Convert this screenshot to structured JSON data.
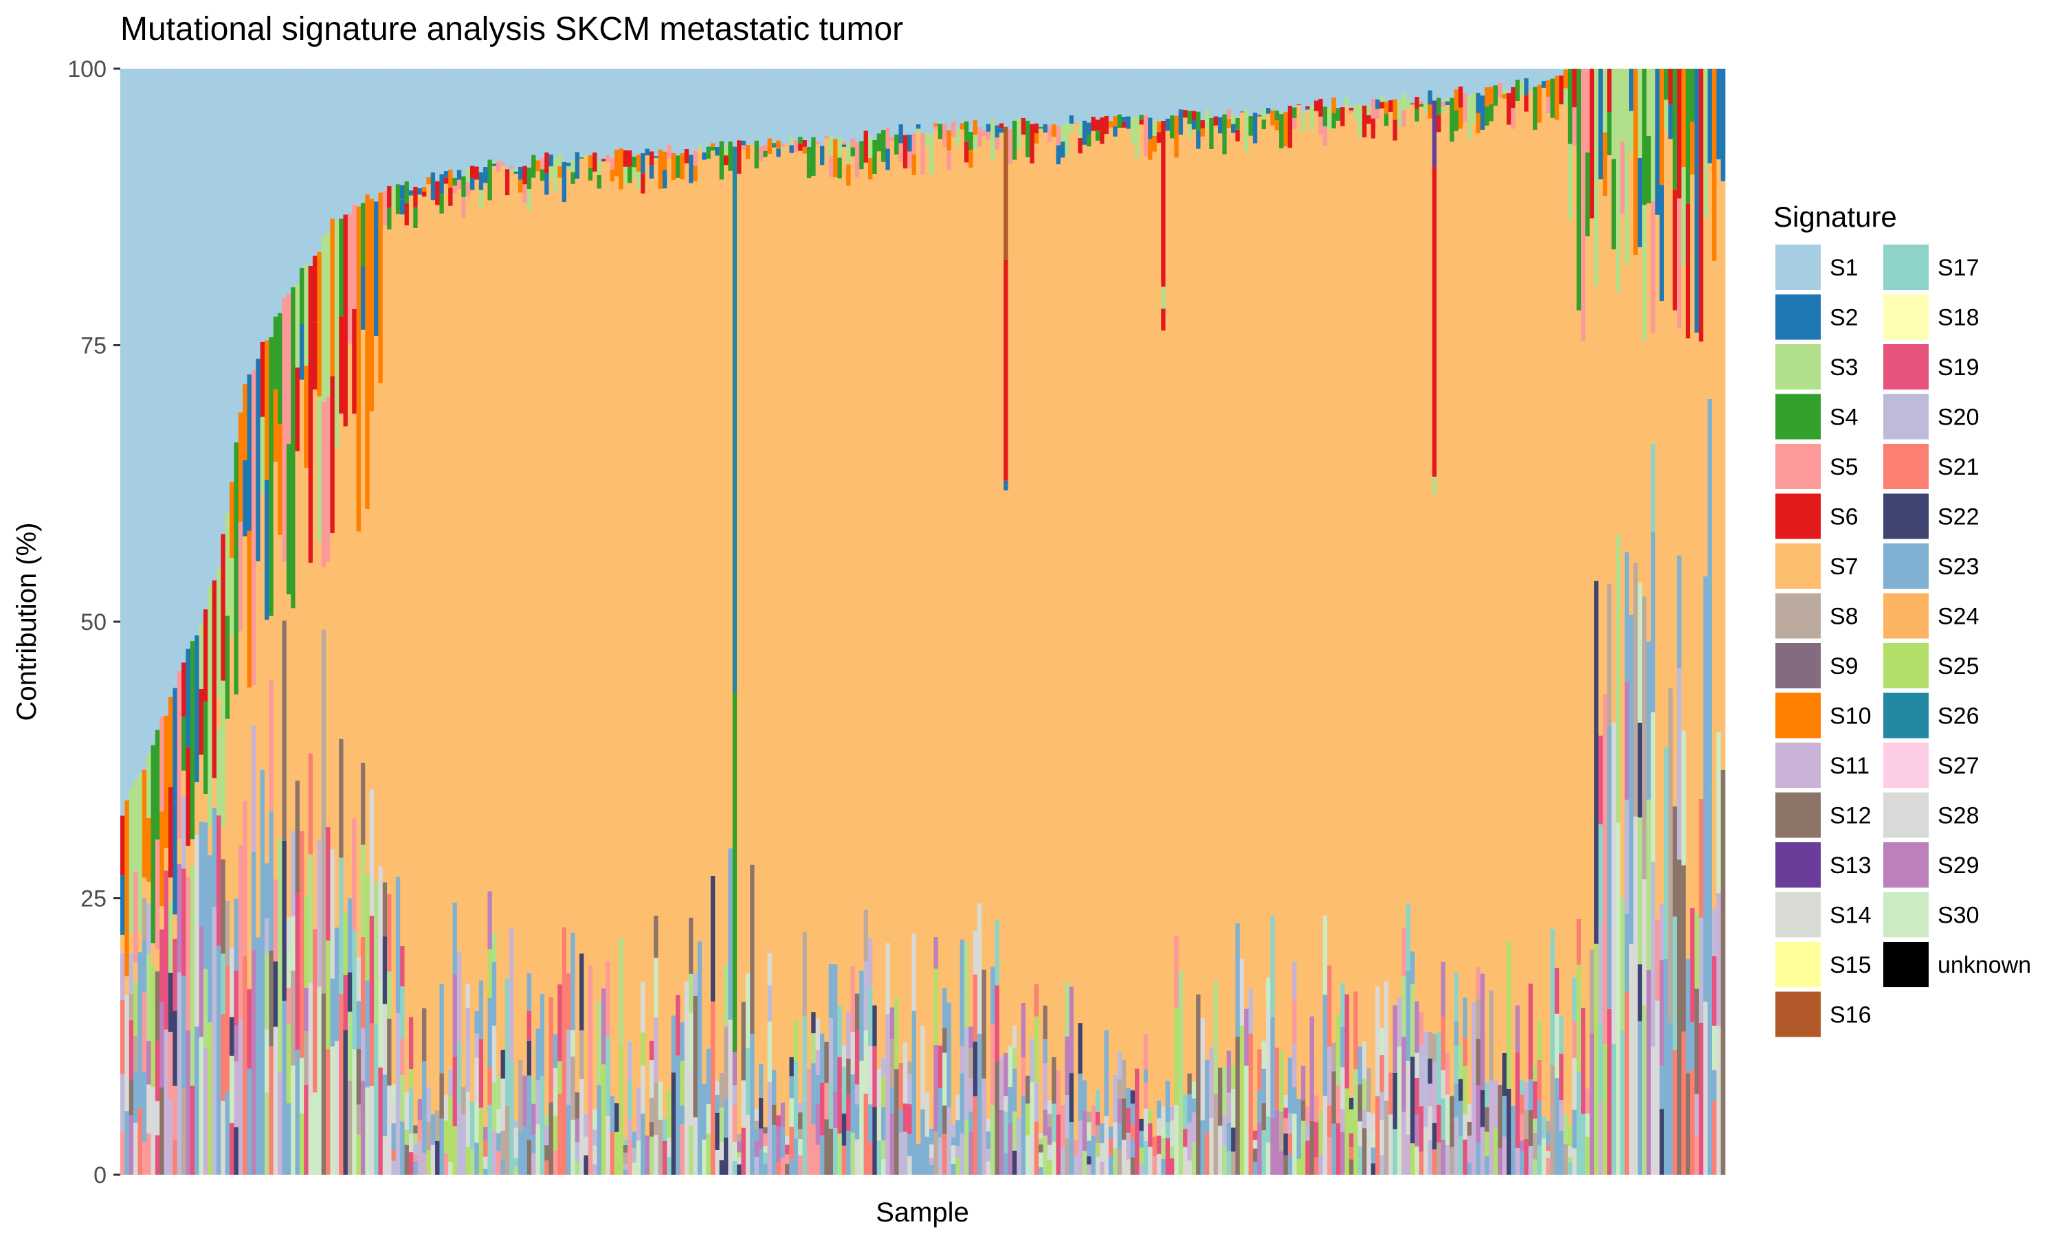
{
  "chart_data": {
    "type": "bar",
    "stacked": true,
    "title": "Mutational signature analysis SKCM metastatic tumor",
    "xlabel": "Sample",
    "ylabel": "Contribution (%)",
    "ylim": [
      0,
      100
    ],
    "yticks": [
      0,
      25,
      50,
      75,
      100
    ],
    "legend_title": "Signature",
    "legend_position": "right",
    "grid": false,
    "panel_background": "#ebebeb",
    "n_samples": 367,
    "signatures": [
      {
        "name": "S1",
        "color": "#a6cee3"
      },
      {
        "name": "S2",
        "color": "#1f78b4"
      },
      {
        "name": "S3",
        "color": "#b2df8a"
      },
      {
        "name": "S4",
        "color": "#33a02c"
      },
      {
        "name": "S5",
        "color": "#fb9a99"
      },
      {
        "name": "S6",
        "color": "#e31a1c"
      },
      {
        "name": "S7",
        "color": "#fdbf6f"
      },
      {
        "name": "S8",
        "color": "#bcaa9e"
      },
      {
        "name": "S9",
        "color": "#836b80"
      },
      {
        "name": "S10",
        "color": "#ff7f00"
      },
      {
        "name": "S11",
        "color": "#cab2d6"
      },
      {
        "name": "S12",
        "color": "#8c7468"
      },
      {
        "name": "S13",
        "color": "#6a3d9a"
      },
      {
        "name": "S14",
        "color": "#d7dbd3"
      },
      {
        "name": "S15",
        "color": "#ffff99"
      },
      {
        "name": "S16",
        "color": "#b15928"
      },
      {
        "name": "S17",
        "color": "#8dd3c7"
      },
      {
        "name": "S18",
        "color": "#ffffb3"
      },
      {
        "name": "S19",
        "color": "#e7537d"
      },
      {
        "name": "S20",
        "color": "#bebada"
      },
      {
        "name": "S21",
        "color": "#fb8072"
      },
      {
        "name": "S22",
        "color": "#3f4570"
      },
      {
        "name": "S23",
        "color": "#80b1d3"
      },
      {
        "name": "S24",
        "color": "#fdb462"
      },
      {
        "name": "S25",
        "color": "#b3de69"
      },
      {
        "name": "S26",
        "color": "#2389a3"
      },
      {
        "name": "S27",
        "color": "#fccde5"
      },
      {
        "name": "S28",
        "color": "#d9d9d9"
      },
      {
        "name": "S29",
        "color": "#bc80bd"
      },
      {
        "name": "S30",
        "color": "#ccebc5"
      },
      {
        "name": "unknown",
        "color": "#000000"
      }
    ],
    "s1_profile": [
      [
        0,
        67
      ],
      [
        1,
        66
      ],
      [
        2,
        65
      ],
      [
        4,
        64
      ],
      [
        6,
        62
      ],
      [
        8,
        60
      ],
      [
        10,
        58
      ],
      [
        12,
        56
      ],
      [
        14,
        54
      ],
      [
        16,
        52
      ],
      [
        18,
        50
      ],
      [
        20,
        47
      ],
      [
        22,
        45
      ],
      [
        24,
        40
      ],
      [
        26,
        34
      ],
      [
        28,
        29
      ],
      [
        30,
        27
      ],
      [
        32,
        25
      ],
      [
        34,
        24
      ],
      [
        36,
        22
      ],
      [
        38,
        20
      ],
      [
        40,
        19
      ],
      [
        42,
        18
      ],
      [
        44,
        17
      ],
      [
        46,
        15
      ],
      [
        48,
        13.5
      ],
      [
        50,
        13
      ],
      [
        52,
        12.5
      ],
      [
        54,
        12
      ],
      [
        56,
        11.8
      ],
      [
        58,
        11.5
      ],
      [
        60,
        11.2
      ],
      [
        62,
        11
      ],
      [
        64,
        10.8
      ],
      [
        66,
        10.5
      ],
      [
        70,
        10
      ],
      [
        75,
        9.5
      ],
      [
        80,
        9
      ],
      [
        90,
        8.5
      ],
      [
        100,
        8
      ],
      [
        110,
        7.8
      ],
      [
        120,
        7.5
      ],
      [
        130,
        7.3
      ],
      [
        140,
        7
      ],
      [
        150,
        6.8
      ],
      [
        160,
        6.5
      ],
      [
        170,
        6
      ],
      [
        180,
        5.5
      ],
      [
        190,
        5.2
      ],
      [
        200,
        5
      ],
      [
        210,
        4.8
      ],
      [
        220,
        4.6
      ],
      [
        240,
        4.2
      ],
      [
        260,
        3.8
      ],
      [
        280,
        3
      ],
      [
        300,
        2.5
      ],
      [
        310,
        2
      ],
      [
        320,
        1.5
      ],
      [
        325,
        1
      ],
      [
        330,
        0.5
      ],
      [
        335,
        0
      ]
    ],
    "notable_bars": [
      {
        "sample": 140,
        "S4": 31,
        "S26": 47,
        "S24": 0
      },
      {
        "sample": 202,
        "S6": 20,
        "S16": 12
      },
      {
        "sample": 238,
        "S6": 15
      },
      {
        "sample": 300,
        "S6": 28,
        "S13": 6
      }
    ]
  }
}
